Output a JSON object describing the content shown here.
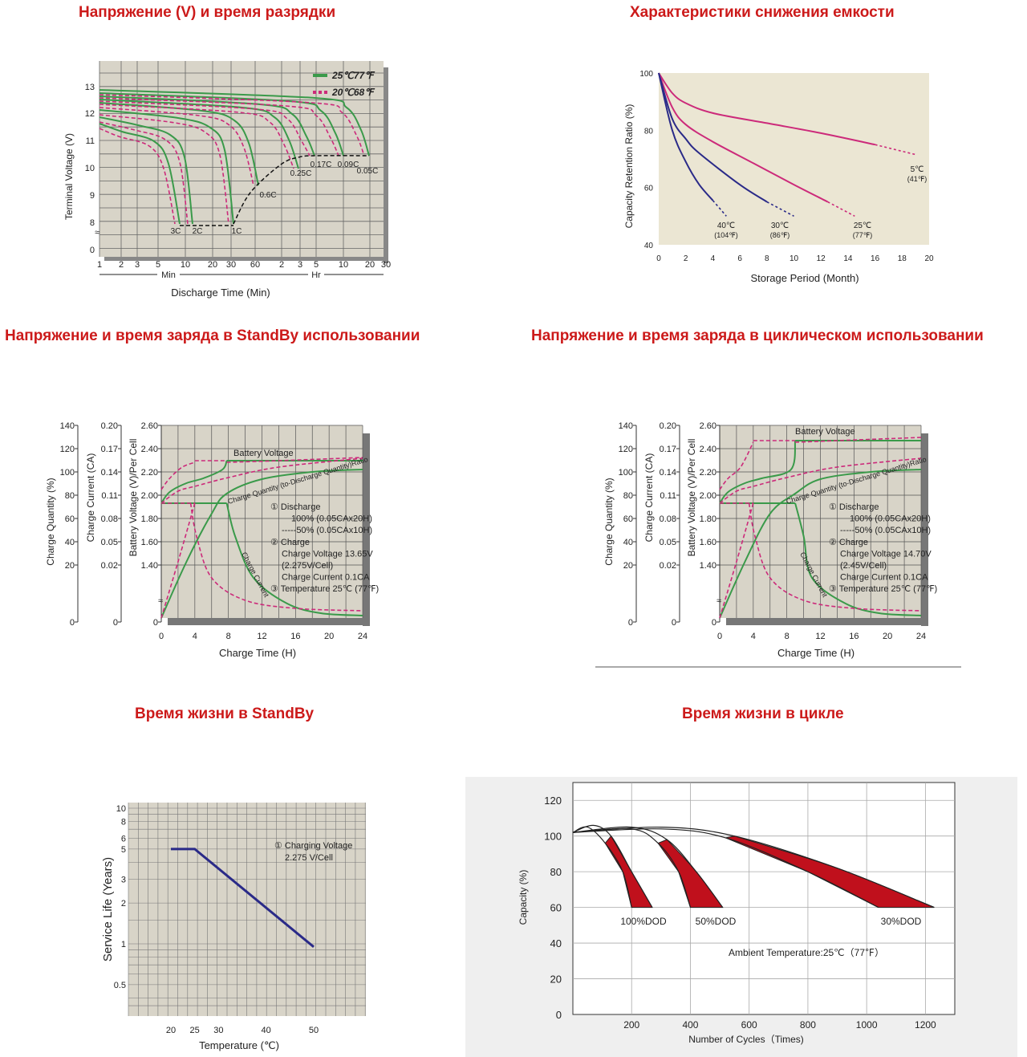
{
  "titles": {
    "discharge": "Напряжение (V) и время разрядки",
    "capacity": "Характеристики снижения емкости",
    "standby_charge": "Напряжение и время заряда в StandBy использовании",
    "cyclic_charge": "Напряжение и время заряда в циклическом использовании",
    "standby_life": "Время жизни в StandBy",
    "cycle_life": "Время жизни в цикле"
  },
  "colors": {
    "panel_bg": "#d8d4c8",
    "grid": "#555555",
    "green": "#3a9a4a",
    "magenta": "#cc2a7a",
    "navy": "#2a2a88",
    "red": "#c0101c",
    "cap_bg": "#ebe6d3"
  },
  "chart_data": [
    {
      "id": "discharge",
      "type": "line",
      "ylabel": "Terminal Voltage (V)",
      "xlabel": "Discharge Time (Min)",
      "y_ticks": [
        "13",
        "12",
        "11",
        "10",
        "9",
        "8",
        "0"
      ],
      "x_ticks": [
        "1",
        "2",
        "3",
        "5",
        "10",
        "20",
        "30",
        "60",
        "2",
        "3",
        "5",
        "10",
        "20",
        "30"
      ],
      "x_unit_min": "Min",
      "x_unit_hr": "Hr",
      "legend": [
        {
          "label": "25℃77℉",
          "style": "solid",
          "color": "#3a9a4a"
        },
        {
          "label": "20℃68℉",
          "style": "dashed",
          "color": "#cc2a7a"
        }
      ],
      "rates": [
        "3C",
        "2C",
        "1C",
        "0.6C",
        "0.25C",
        "0.17C",
        "0.09C",
        "0.05C"
      ],
      "series": [
        {
          "name": "3C",
          "start_v": 11.8,
          "end_time": "6 min",
          "end_v": 8.0
        },
        {
          "name": "2C",
          "start_v": 12.1,
          "end_time": "10 min",
          "end_v": 8.0
        },
        {
          "name": "1C",
          "start_v": 12.3,
          "end_time": "28 min",
          "end_v": 8.0
        },
        {
          "name": "0.6C",
          "start_v": 12.5,
          "end_time": "55 min",
          "end_v": 9.2
        },
        {
          "name": "0.25C",
          "start_v": 12.6,
          "end_time": "3 h",
          "end_v": 10.2
        },
        {
          "name": "0.17C",
          "start_v": 12.7,
          "end_time": "5 h",
          "end_v": 10.5
        },
        {
          "name": "0.09C",
          "start_v": 12.8,
          "end_time": "10 h",
          "end_v": 10.5
        },
        {
          "name": "0.05C",
          "start_v": 12.9,
          "end_time": "20 h",
          "end_v": 10.5
        }
      ]
    },
    {
      "id": "capacity",
      "type": "line",
      "ylabel": "Capacity Retention Ratio (%)",
      "xlabel": "Storage Period (Month)",
      "xlim": [
        0,
        20
      ],
      "ylim": [
        40,
        100
      ],
      "x_ticks": [
        "0",
        "2",
        "4",
        "6",
        "8",
        "10",
        "12",
        "14",
        "16",
        "18",
        "20"
      ],
      "y_ticks": [
        "100",
        "80",
        "60",
        "40"
      ],
      "series": [
        {
          "name": "5℃",
          "sub": "(41℉)",
          "color": "#cc2a7a",
          "points": [
            [
              0,
              100
            ],
            [
              1,
              93
            ],
            [
              2,
              89.5
            ],
            [
              4,
              86
            ],
            [
              8,
              82.5
            ],
            [
              12,
              79
            ],
            [
              16,
              75
            ],
            [
              19,
              71.5
            ]
          ]
        },
        {
          "name": "25℃",
          "sub": "(77℉)",
          "color": "#cc2a7a",
          "points": [
            [
              0,
              100
            ],
            [
              1,
              88
            ],
            [
              2,
              82
            ],
            [
              4,
              76
            ],
            [
              7,
              68.5
            ],
            [
              10,
              61
            ],
            [
              12.5,
              55
            ],
            [
              14.5,
              50
            ]
          ]
        },
        {
          "name": "30℃",
          "sub": "(86℉)",
          "color": "#2a2a88",
          "points": [
            [
              0,
              100
            ],
            [
              1,
              84
            ],
            [
              2,
              77
            ],
            [
              3,
              72
            ],
            [
              6,
              61
            ],
            [
              8,
              55
            ],
            [
              10,
              50
            ]
          ]
        },
        {
          "name": "40℃",
          "sub": "(104℉)",
          "color": "#2a2a88",
          "points": [
            [
              0,
              100
            ],
            [
              1,
              80
            ],
            [
              2,
              69
            ],
            [
              3,
              61
            ],
            [
              4,
              55.5
            ],
            [
              5,
              50
            ]
          ]
        }
      ]
    },
    {
      "id": "standby_charge",
      "type": "line",
      "xlabel": "Charge Time (H)",
      "ylabel_quantity": "Charge Quantity (%)",
      "ylabel_current": "Charge Current (CA)",
      "ylabel_voltage": "Battery Voltage (V)/Per Cell",
      "x_ticks": [
        "0",
        "4",
        "8",
        "12",
        "16",
        "20",
        "24"
      ],
      "q_ticks": [
        "140",
        "120",
        "100",
        "80",
        "60",
        "40",
        "20",
        "0"
      ],
      "c_ticks": [
        "0.20",
        "0.17",
        "0.14",
        "0.11",
        "0.08",
        "0.05",
        "0.02",
        "0"
      ],
      "v_ticks": [
        "2.60",
        "2.40",
        "2.20",
        "2.00",
        "1.80",
        "1.60",
        "1.40",
        "0"
      ],
      "label_battery_voltage": "Battery Voltage",
      "label_ratio": "Charge Quantity (to-Discharge Quantity)Ratio",
      "label_current": "Charge Current",
      "notes": [
        "① Discharge",
        "100% (0.05CAx20H)",
        "-----50% (0.05CAx10H)",
        "② Charge",
        "Charge Voltage 13.65V",
        "(2.275V/Cell)",
        "Charge Current 0.1CA",
        "③ Temperature 25℃ (77℉)"
      ]
    },
    {
      "id": "cyclic_charge",
      "type": "line",
      "xlabel": "Charge Time (H)",
      "ylabel_quantity": "Charge Quantity (%)",
      "ylabel_current": "Charge Current (CA)",
      "ylabel_voltage": "Battery Voltage (V)/Per Cell",
      "x_ticks": [
        "0",
        "4",
        "8",
        "12",
        "16",
        "20",
        "24"
      ],
      "q_ticks": [
        "140",
        "120",
        "100",
        "80",
        "60",
        "40",
        "20",
        "0"
      ],
      "c_ticks": [
        "0.20",
        "0.17",
        "0.14",
        "0.11",
        "0.08",
        "0.05",
        "0.02",
        "0"
      ],
      "v_ticks": [
        "2.60",
        "2.40",
        "2.20",
        "2.00",
        "1.80",
        "1.60",
        "1.40",
        "0"
      ],
      "label_battery_voltage": "Battery Voltage",
      "label_ratio": "Charge Quantity (to-Discharge Quantity)Ratio",
      "label_current": "Charge Current",
      "notes": [
        "① Discharge",
        "100% (0.05CAx20H)",
        "-----50% (0.05CAx10H)",
        "② Charge",
        "Charge Voltage 14.70V",
        "(2.45V/Cell)",
        "Charge Current 0.1CA",
        "③ Temperature 25℃ (77℉)"
      ]
    },
    {
      "id": "standby_life",
      "type": "line",
      "xlabel": "Temperature (℃)",
      "ylabel": "Service Life (Years)",
      "y_scale": "log",
      "x_ticks": [
        "20",
        "25",
        "30",
        "40",
        "50"
      ],
      "y_ticks": [
        "10",
        "8",
        "6",
        "5",
        "3",
        "2",
        "1",
        "0.5"
      ],
      "note": [
        "① Charging Voltage",
        "2.275 V/Cell"
      ],
      "series": [
        {
          "points": [
            [
              20,
              5
            ],
            [
              25,
              5
            ],
            [
              50,
              0.95
            ]
          ]
        }
      ]
    },
    {
      "id": "cycle_life",
      "type": "area",
      "xlabel": "Number of Cycles（Times)",
      "ylabel": "Capacity (%)",
      "xlim": [
        0,
        1300
      ],
      "ylim": [
        0,
        130
      ],
      "x_ticks": [
        "200",
        "400",
        "600",
        "800",
        "1000",
        "1200"
      ],
      "y_ticks": [
        "120",
        "100",
        "80",
        "60",
        "40",
        "20",
        "0"
      ],
      "annotation": "Ambient Temperature:25℃（77℉）",
      "series": [
        {
          "name": "100%DOD",
          "upper": [
            [
              0,
              102
            ],
            [
              70,
              106
            ],
            [
              130,
              100
            ],
            [
              200,
              80
            ],
            [
              270,
              60
            ]
          ],
          "lower": [
            [
              0,
              102
            ],
            [
              50,
              105
            ],
            [
              110,
              96
            ],
            [
              170,
              80
            ],
            [
              200,
              60
            ]
          ]
        },
        {
          "name": "50%DOD",
          "upper": [
            [
              0,
              102
            ],
            [
              200,
              105
            ],
            [
              320,
              98
            ],
            [
              420,
              80
            ],
            [
              510,
              60
            ]
          ],
          "lower": [
            [
              0,
              102
            ],
            [
              200,
              104
            ],
            [
              290,
              96
            ],
            [
              360,
              80
            ],
            [
              400,
              60
            ]
          ]
        },
        {
          "name": "30%DOD",
          "upper": [
            [
              0,
              102
            ],
            [
              300,
              105
            ],
            [
              550,
              100
            ],
            [
              900,
              82
            ],
            [
              1230,
              60
            ]
          ],
          "lower": [
            [
              0,
              102
            ],
            [
              300,
              104
            ],
            [
              520,
              99
            ],
            [
              800,
              80
            ],
            [
              1040,
              60
            ]
          ]
        }
      ]
    }
  ]
}
